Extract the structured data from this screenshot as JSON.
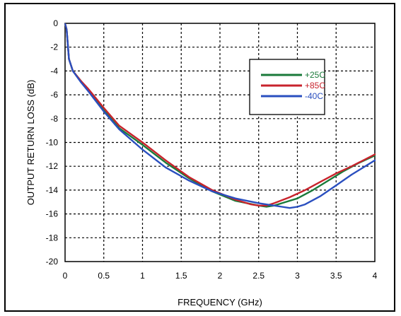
{
  "chart_data": {
    "type": "line",
    "xlabel": "FREQUENCY (GHz)",
    "ylabel": "OUTPUT RETURN LOSS (dB)",
    "xlim": [
      0,
      4
    ],
    "ylim": [
      -20,
      0
    ],
    "xticks": [
      0,
      0.5,
      1,
      1.5,
      2,
      2.5,
      3,
      3.5,
      4
    ],
    "yticks": [
      0,
      -2,
      -4,
      -6,
      -8,
      -10,
      -12,
      -14,
      -16,
      -18,
      -20
    ],
    "grid": true,
    "legend_position": "top-right",
    "series": [
      {
        "name": "+25C",
        "color": "#1a7a3a",
        "x": [
          0.02,
          0.05,
          0.1,
          0.2,
          0.3,
          0.5,
          0.7,
          1.0,
          1.3,
          1.6,
          1.9,
          2.2,
          2.5,
          2.6,
          2.7,
          2.8,
          3.0,
          3.2,
          3.4,
          3.6,
          3.8,
          4.0
        ],
        "y": [
          -0.5,
          -3.0,
          -4.0,
          -4.8,
          -5.6,
          -7.3,
          -8.8,
          -10.2,
          -11.7,
          -13.0,
          -14.1,
          -14.9,
          -15.3,
          -15.4,
          -15.3,
          -15.1,
          -14.7,
          -14.0,
          -13.2,
          -12.4,
          -11.7,
          -11.1
        ]
      },
      {
        "name": "+85C",
        "color": "#c8232c",
        "x": [
          0.02,
          0.05,
          0.1,
          0.2,
          0.3,
          0.5,
          0.7,
          1.0,
          1.3,
          1.6,
          1.9,
          2.2,
          2.4,
          2.5,
          2.6,
          2.7,
          2.9,
          3.1,
          3.3,
          3.5,
          3.7,
          4.0
        ],
        "y": [
          -0.5,
          -3.0,
          -4.0,
          -4.8,
          -5.5,
          -7.1,
          -8.6,
          -10.0,
          -11.5,
          -12.9,
          -14.0,
          -14.8,
          -15.2,
          -15.3,
          -15.3,
          -15.1,
          -14.6,
          -14.0,
          -13.3,
          -12.6,
          -12.0,
          -11.0
        ]
      },
      {
        "name": "-40C",
        "color": "#2a4fbf",
        "x": [
          0.02,
          0.05,
          0.1,
          0.2,
          0.3,
          0.5,
          0.7,
          1.0,
          1.3,
          1.6,
          1.9,
          2.2,
          2.5,
          2.7,
          2.8,
          2.9,
          3.0,
          3.1,
          3.3,
          3.5,
          3.7,
          4.0
        ],
        "y": [
          -0.5,
          -3.0,
          -4.0,
          -4.9,
          -5.7,
          -7.4,
          -8.9,
          -10.6,
          -12.1,
          -13.2,
          -14.1,
          -14.7,
          -15.1,
          -15.3,
          -15.4,
          -15.5,
          -15.4,
          -15.2,
          -14.5,
          -13.6,
          -12.7,
          -11.5
        ]
      }
    ]
  }
}
